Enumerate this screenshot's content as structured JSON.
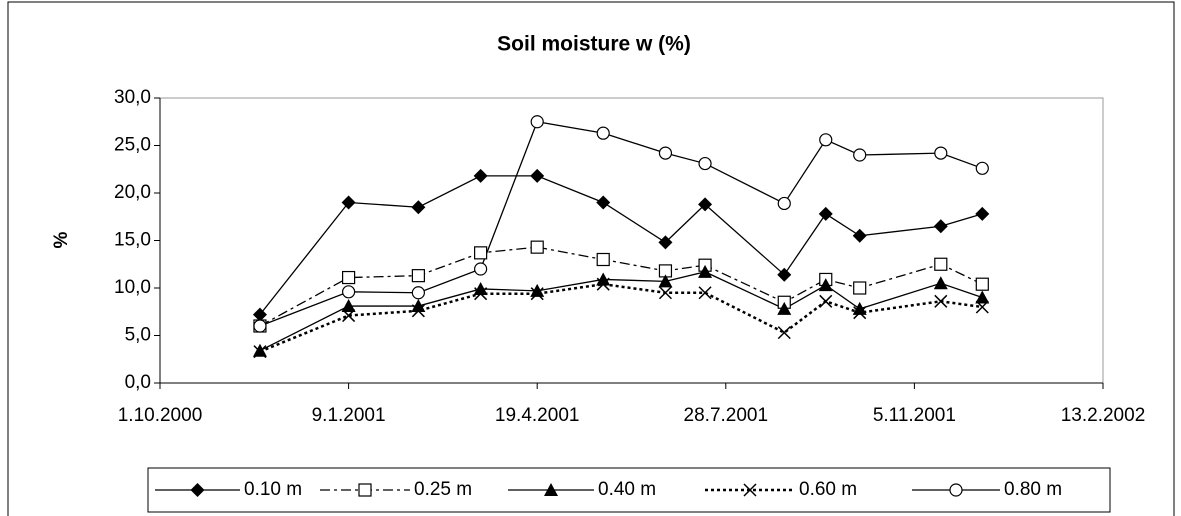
{
  "chart_data": {
    "type": "line",
    "title": "Soil moisture w (%)",
    "y_label": "%",
    "x": [
      "2000-11-23",
      "2001-01-09",
      "2001-02-15",
      "2001-03-20",
      "2001-04-19",
      "2001-05-24",
      "2001-06-26",
      "2001-07-17",
      "2001-08-28",
      "2001-09-19",
      "2001-10-07",
      "2001-11-19",
      "2001-12-11"
    ],
    "xlim": [
      "2000-10-01",
      "2002-02-13"
    ],
    "xticks": [
      {
        "value": "2000-10-01",
        "label": "1.10.2000"
      },
      {
        "value": "2001-01-09",
        "label": "9.1.2001"
      },
      {
        "value": "2001-04-19",
        "label": "19.4.2001"
      },
      {
        "value": "2001-07-28",
        "label": "28.7.2001"
      },
      {
        "value": "2001-11-05",
        "label": "5.11.2001"
      },
      {
        "value": "2002-02-13",
        "label": "13.2.2002"
      }
    ],
    "ylim": [
      0,
      30
    ],
    "yticks": [
      {
        "value": 0,
        "label": "0,0"
      },
      {
        "value": 5,
        "label": "5,0"
      },
      {
        "value": 10,
        "label": "10,0"
      },
      {
        "value": 15,
        "label": "15,0"
      },
      {
        "value": 20,
        "label": "20,0"
      },
      {
        "value": 25,
        "label": "25,0"
      },
      {
        "value": 30,
        "label": "30,0"
      }
    ],
    "legend": "bottom",
    "series": [
      {
        "name": "0.10 m",
        "color": "#000000",
        "marker": "diamond",
        "line_style": "solid",
        "values": [
          7.2,
          19.0,
          18.5,
          21.8,
          21.8,
          19.0,
          14.8,
          18.8,
          11.4,
          17.8,
          15.5,
          16.5,
          17.8
        ]
      },
      {
        "name": "0.25 m",
        "color": "#000000",
        "marker": "square-open",
        "line_style": "dashdot",
        "values": [
          6.0,
          11.1,
          11.3,
          13.7,
          14.3,
          13.0,
          11.8,
          12.4,
          8.5,
          10.9,
          10.0,
          12.5,
          10.4
        ]
      },
      {
        "name": "0.40 m",
        "color": "#000000",
        "marker": "triangle",
        "line_style": "solid",
        "values": [
          3.4,
          8.1,
          8.1,
          9.9,
          9.7,
          10.9,
          10.7,
          11.7,
          7.8,
          10.3,
          7.8,
          10.5,
          9.0
        ]
      },
      {
        "name": "0.60 m",
        "color": "#000000",
        "marker": "x",
        "line_style": "dotted",
        "values": [
          3.3,
          7.1,
          7.6,
          9.4,
          9.4,
          10.4,
          9.5,
          9.5,
          5.3,
          8.6,
          7.4,
          8.6,
          8.0
        ]
      },
      {
        "name": "0.80 m",
        "color": "#000000",
        "marker": "circle-open",
        "line_style": "solid",
        "values": [
          6.0,
          9.6,
          9.5,
          12.0,
          27.5,
          26.3,
          24.2,
          23.1,
          18.9,
          25.6,
          24.0,
          24.2,
          22.6
        ]
      }
    ]
  }
}
